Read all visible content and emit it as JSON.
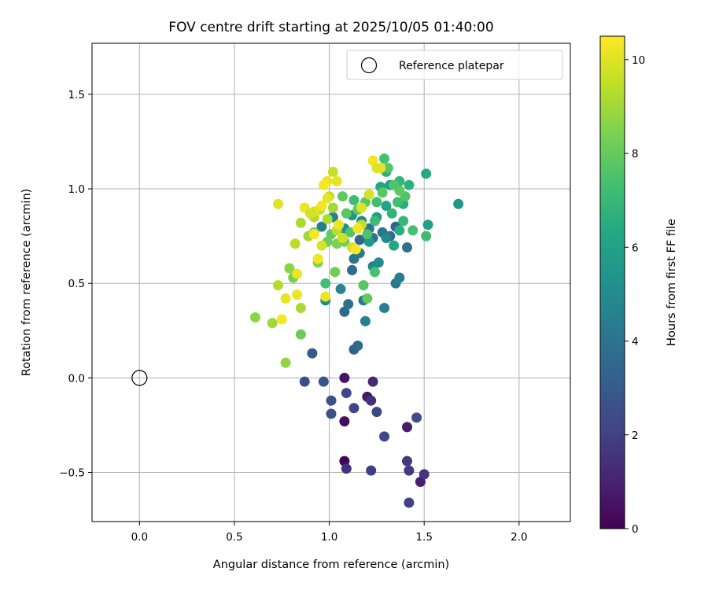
{
  "chart_data": {
    "type": "scatter",
    "title": "FOV centre drift starting at 2025/10/05 01:40:00",
    "xlabel": "Angular distance from reference (arcmin)",
    "ylabel": "Rotation from reference (arcmin)",
    "xlim": [
      -0.25,
      2.27
    ],
    "ylim": [
      -0.76,
      1.77
    ],
    "xticks": [
      0.0,
      0.5,
      1.0,
      1.5,
      2.0
    ],
    "xtick_labels": [
      "0.0",
      "0.5",
      "1.0",
      "1.5",
      "2.0"
    ],
    "yticks": [
      -0.5,
      0.0,
      0.5,
      1.0,
      1.5
    ],
    "ytick_labels": [
      "−0.5",
      "0.0",
      "0.5",
      "1.0",
      "1.5"
    ],
    "grid": true,
    "legend": {
      "position": "top-right",
      "entries": [
        "Reference platepar"
      ]
    },
    "reference_point": {
      "x": 0.0,
      "y": 0.0,
      "label": "Reference platepar"
    },
    "colorbar": {
      "label": "Hours from first FF file",
      "range": [
        0,
        10.5
      ],
      "ticks": [
        0,
        2,
        4,
        6,
        8,
        10
      ],
      "tick_labels": [
        "0",
        "2",
        "4",
        "6",
        "8",
        "10"
      ],
      "colormap": "viridis"
    },
    "points": [
      {
        "x": 1.08,
        "y": 0.0,
        "h": 0.6
      },
      {
        "x": 1.08,
        "y": -0.23,
        "h": 0.3
      },
      {
        "x": 1.08,
        "y": -0.44,
        "h": 0.1
      },
      {
        "x": 1.2,
        "y": -0.1,
        "h": 0.7
      },
      {
        "x": 1.23,
        "y": -0.02,
        "h": 1.2
      },
      {
        "x": 1.41,
        "y": -0.26,
        "h": 0.8
      },
      {
        "x": 1.48,
        "y": -0.55,
        "h": 0.9
      },
      {
        "x": 1.5,
        "y": -0.51,
        "h": 1.6
      },
      {
        "x": 1.41,
        "y": -0.44,
        "h": 1.7
      },
      {
        "x": 1.42,
        "y": -0.49,
        "h": 1.8
      },
      {
        "x": 1.42,
        "y": -0.66,
        "h": 2.0
      },
      {
        "x": 1.09,
        "y": -0.48,
        "h": 1.5
      },
      {
        "x": 1.22,
        "y": -0.49,
        "h": 1.9
      },
      {
        "x": 1.29,
        "y": -0.31,
        "h": 2.3
      },
      {
        "x": 1.46,
        "y": -0.21,
        "h": 2.4
      },
      {
        "x": 1.25,
        "y": -0.18,
        "h": 2.2
      },
      {
        "x": 1.22,
        "y": -0.12,
        "h": 1.4
      },
      {
        "x": 1.13,
        "y": -0.16,
        "h": 2.1
      },
      {
        "x": 1.09,
        "y": -0.08,
        "h": 2.2
      },
      {
        "x": 1.01,
        "y": -0.12,
        "h": 2.6
      },
      {
        "x": 1.01,
        "y": -0.19,
        "h": 2.6
      },
      {
        "x": 0.97,
        "y": -0.02,
        "h": 2.7
      },
      {
        "x": 0.87,
        "y": -0.02,
        "h": 2.5
      },
      {
        "x": 0.91,
        "y": 0.13,
        "h": 2.9
      },
      {
        "x": 1.13,
        "y": 0.15,
        "h": 3.3
      },
      {
        "x": 1.15,
        "y": 0.17,
        "h": 3.6
      },
      {
        "x": 1.08,
        "y": 0.35,
        "h": 3.6
      },
      {
        "x": 1.1,
        "y": 0.39,
        "h": 4.0
      },
      {
        "x": 1.18,
        "y": 0.41,
        "h": 4.3
      },
      {
        "x": 1.19,
        "y": 0.3,
        "h": 4.6
      },
      {
        "x": 1.29,
        "y": 0.37,
        "h": 4.4
      },
      {
        "x": 1.35,
        "y": 0.5,
        "h": 4.2
      },
      {
        "x": 1.37,
        "y": 0.53,
        "h": 4.5
      },
      {
        "x": 1.41,
        "y": 0.69,
        "h": 3.9
      },
      {
        "x": 1.32,
        "y": 0.75,
        "h": 3.7
      },
      {
        "x": 1.35,
        "y": 0.8,
        "h": 3.4
      },
      {
        "x": 1.28,
        "y": 0.77,
        "h": 4.1
      },
      {
        "x": 1.23,
        "y": 0.74,
        "h": 3.8
      },
      {
        "x": 1.21,
        "y": 0.79,
        "h": 4.0
      },
      {
        "x": 1.16,
        "y": 0.73,
        "h": 3.5
      },
      {
        "x": 1.12,
        "y": 0.57,
        "h": 3.7
      },
      {
        "x": 1.13,
        "y": 0.63,
        "h": 4.0
      },
      {
        "x": 1.16,
        "y": 0.66,
        "h": 4.3
      },
      {
        "x": 1.23,
        "y": 0.59,
        "h": 4.6
      },
      {
        "x": 1.26,
        "y": 0.61,
        "h": 5.0
      },
      {
        "x": 1.3,
        "y": 0.74,
        "h": 4.8
      },
      {
        "x": 1.06,
        "y": 0.47,
        "h": 4.8
      },
      {
        "x": 0.98,
        "y": 0.41,
        "h": 4.9
      },
      {
        "x": 0.96,
        "y": 0.8,
        "h": 4.5
      },
      {
        "x": 1.02,
        "y": 0.85,
        "h": 4.7
      },
      {
        "x": 1.08,
        "y": 0.79,
        "h": 5.2
      },
      {
        "x": 1.12,
        "y": 0.86,
        "h": 5.4
      },
      {
        "x": 1.17,
        "y": 0.83,
        "h": 5.0
      },
      {
        "x": 1.21,
        "y": 0.72,
        "h": 5.6
      },
      {
        "x": 1.25,
        "y": 0.85,
        "h": 5.8
      },
      {
        "x": 1.3,
        "y": 0.91,
        "h": 6.1
      },
      {
        "x": 1.34,
        "y": 0.7,
        "h": 6.3
      },
      {
        "x": 1.37,
        "y": 0.78,
        "h": 6.6
      },
      {
        "x": 1.39,
        "y": 0.92,
        "h": 6.5
      },
      {
        "x": 1.42,
        "y": 1.02,
        "h": 6.7
      },
      {
        "x": 1.37,
        "y": 1.04,
        "h": 6.9
      },
      {
        "x": 1.32,
        "y": 1.02,
        "h": 5.9
      },
      {
        "x": 1.27,
        "y": 1.01,
        "h": 6.2
      },
      {
        "x": 1.3,
        "y": 1.09,
        "h": 6.6
      },
      {
        "x": 1.51,
        "y": 1.08,
        "h": 6.4
      },
      {
        "x": 1.52,
        "y": 0.81,
        "h": 6.0
      },
      {
        "x": 1.68,
        "y": 0.92,
        "h": 5.5
      },
      {
        "x": 1.51,
        "y": 0.75,
        "h": 7.2
      },
      {
        "x": 1.44,
        "y": 0.78,
        "h": 7.4
      },
      {
        "x": 1.39,
        "y": 0.83,
        "h": 7.0
      },
      {
        "x": 1.33,
        "y": 0.87,
        "h": 6.8
      },
      {
        "x": 1.36,
        "y": 0.93,
        "h": 7.3
      },
      {
        "x": 1.4,
        "y": 0.96,
        "h": 7.6
      },
      {
        "x": 1.37,
        "y": 0.99,
        "h": 7.9
      },
      {
        "x": 1.34,
        "y": 1.02,
        "h": 7.6
      },
      {
        "x": 1.28,
        "y": 0.98,
        "h": 7.8
      },
      {
        "x": 1.29,
        "y": 1.16,
        "h": 7.4
      },
      {
        "x": 1.31,
        "y": 1.11,
        "h": 7.7
      },
      {
        "x": 1.25,
        "y": 0.93,
        "h": 7.3
      },
      {
        "x": 1.24,
        "y": 0.83,
        "h": 7.1
      },
      {
        "x": 1.2,
        "y": 0.76,
        "h": 7.5
      },
      {
        "x": 1.13,
        "y": 0.94,
        "h": 7.2
      },
      {
        "x": 1.19,
        "y": 0.93,
        "h": 7.8
      },
      {
        "x": 1.07,
        "y": 0.96,
        "h": 7.9
      },
      {
        "x": 1.09,
        "y": 0.87,
        "h": 7.8
      },
      {
        "x": 1.15,
        "y": 0.89,
        "h": 8.0
      },
      {
        "x": 1.11,
        "y": 0.77,
        "h": 7.6
      },
      {
        "x": 1.08,
        "y": 0.72,
        "h": 8.2
      },
      {
        "x": 1.04,
        "y": 0.71,
        "h": 8.4
      },
      {
        "x": 1.01,
        "y": 0.76,
        "h": 8.0
      },
      {
        "x": 0.99,
        "y": 0.72,
        "h": 8.1
      },
      {
        "x": 0.92,
        "y": 0.77,
        "h": 8.3
      },
      {
        "x": 1.24,
        "y": 0.56,
        "h": 7.4
      },
      {
        "x": 1.18,
        "y": 0.49,
        "h": 7.7
      },
      {
        "x": 1.2,
        "y": 0.42,
        "h": 8.0
      },
      {
        "x": 1.03,
        "y": 0.56,
        "h": 8.2
      },
      {
        "x": 0.98,
        "y": 0.5,
        "h": 7.3
      },
      {
        "x": 0.94,
        "y": 0.61,
        "h": 8.5
      },
      {
        "x": 0.81,
        "y": 0.53,
        "h": 8.3
      },
      {
        "x": 0.79,
        "y": 0.58,
        "h": 8.6
      },
      {
        "x": 0.85,
        "y": 0.23,
        "h": 8.1
      },
      {
        "x": 0.77,
        "y": 0.08,
        "h": 8.8
      },
      {
        "x": 0.61,
        "y": 0.32,
        "h": 8.7
      },
      {
        "x": 0.7,
        "y": 0.29,
        "h": 9.0
      },
      {
        "x": 0.73,
        "y": 0.49,
        "h": 9.3
      },
      {
        "x": 0.85,
        "y": 0.37,
        "h": 9.1
      },
      {
        "x": 0.82,
        "y": 0.71,
        "h": 9.4
      },
      {
        "x": 0.85,
        "y": 0.82,
        "h": 9.2
      },
      {
        "x": 0.89,
        "y": 0.75,
        "h": 9.0
      },
      {
        "x": 0.92,
        "y": 0.85,
        "h": 9.3
      },
      {
        "x": 0.95,
        "y": 0.89,
        "h": 9.6
      },
      {
        "x": 0.99,
        "y": 0.84,
        "h": 9.2
      },
      {
        "x": 1.02,
        "y": 0.9,
        "h": 9.0
      },
      {
        "x": 1.0,
        "y": 0.96,
        "h": 9.5
      },
      {
        "x": 1.04,
        "y": 0.78,
        "h": 9.4
      },
      {
        "x": 1.07,
        "y": 0.74,
        "h": 9.7
      },
      {
        "x": 1.12,
        "y": 0.69,
        "h": 9.9
      },
      {
        "x": 1.17,
        "y": 0.81,
        "h": 9.5
      },
      {
        "x": 1.21,
        "y": 0.97,
        "h": 9.8
      },
      {
        "x": 1.23,
        "y": 1.15,
        "h": 10.3
      },
      {
        "x": 1.27,
        "y": 1.11,
        "h": 10.1
      },
      {
        "x": 1.25,
        "y": 1.11,
        "h": 10.0
      },
      {
        "x": 1.04,
        "y": 1.04,
        "h": 10.1
      },
      {
        "x": 1.02,
        "y": 1.09,
        "h": 9.6
      },
      {
        "x": 0.99,
        "y": 1.04,
        "h": 10.2
      },
      {
        "x": 0.97,
        "y": 1.02,
        "h": 10.4
      },
      {
        "x": 0.99,
        "y": 0.95,
        "h": 10.1
      },
      {
        "x": 0.96,
        "y": 0.91,
        "h": 10.3
      },
      {
        "x": 0.92,
        "y": 0.88,
        "h": 10.0
      },
      {
        "x": 0.87,
        "y": 0.9,
        "h": 10.2
      },
      {
        "x": 0.9,
        "y": 0.87,
        "h": 9.8
      },
      {
        "x": 0.92,
        "y": 0.76,
        "h": 10.4
      },
      {
        "x": 0.96,
        "y": 0.7,
        "h": 9.9
      },
      {
        "x": 1.05,
        "y": 0.81,
        "h": 10.2
      },
      {
        "x": 1.15,
        "y": 0.79,
        "h": 10.3
      },
      {
        "x": 1.17,
        "y": 0.9,
        "h": 10.0
      },
      {
        "x": 0.73,
        "y": 0.92,
        "h": 10.0
      },
      {
        "x": 0.94,
        "y": 0.63,
        "h": 10.3
      },
      {
        "x": 0.83,
        "y": 0.55,
        "h": 10.2
      },
      {
        "x": 0.83,
        "y": 0.44,
        "h": 10.2
      },
      {
        "x": 0.77,
        "y": 0.42,
        "h": 10.1
      },
      {
        "x": 0.75,
        "y": 0.31,
        "h": 10.4
      },
      {
        "x": 0.98,
        "y": 0.43,
        "h": 10.2
      },
      {
        "x": 1.14,
        "y": 0.68,
        "h": 10.4
      }
    ]
  }
}
